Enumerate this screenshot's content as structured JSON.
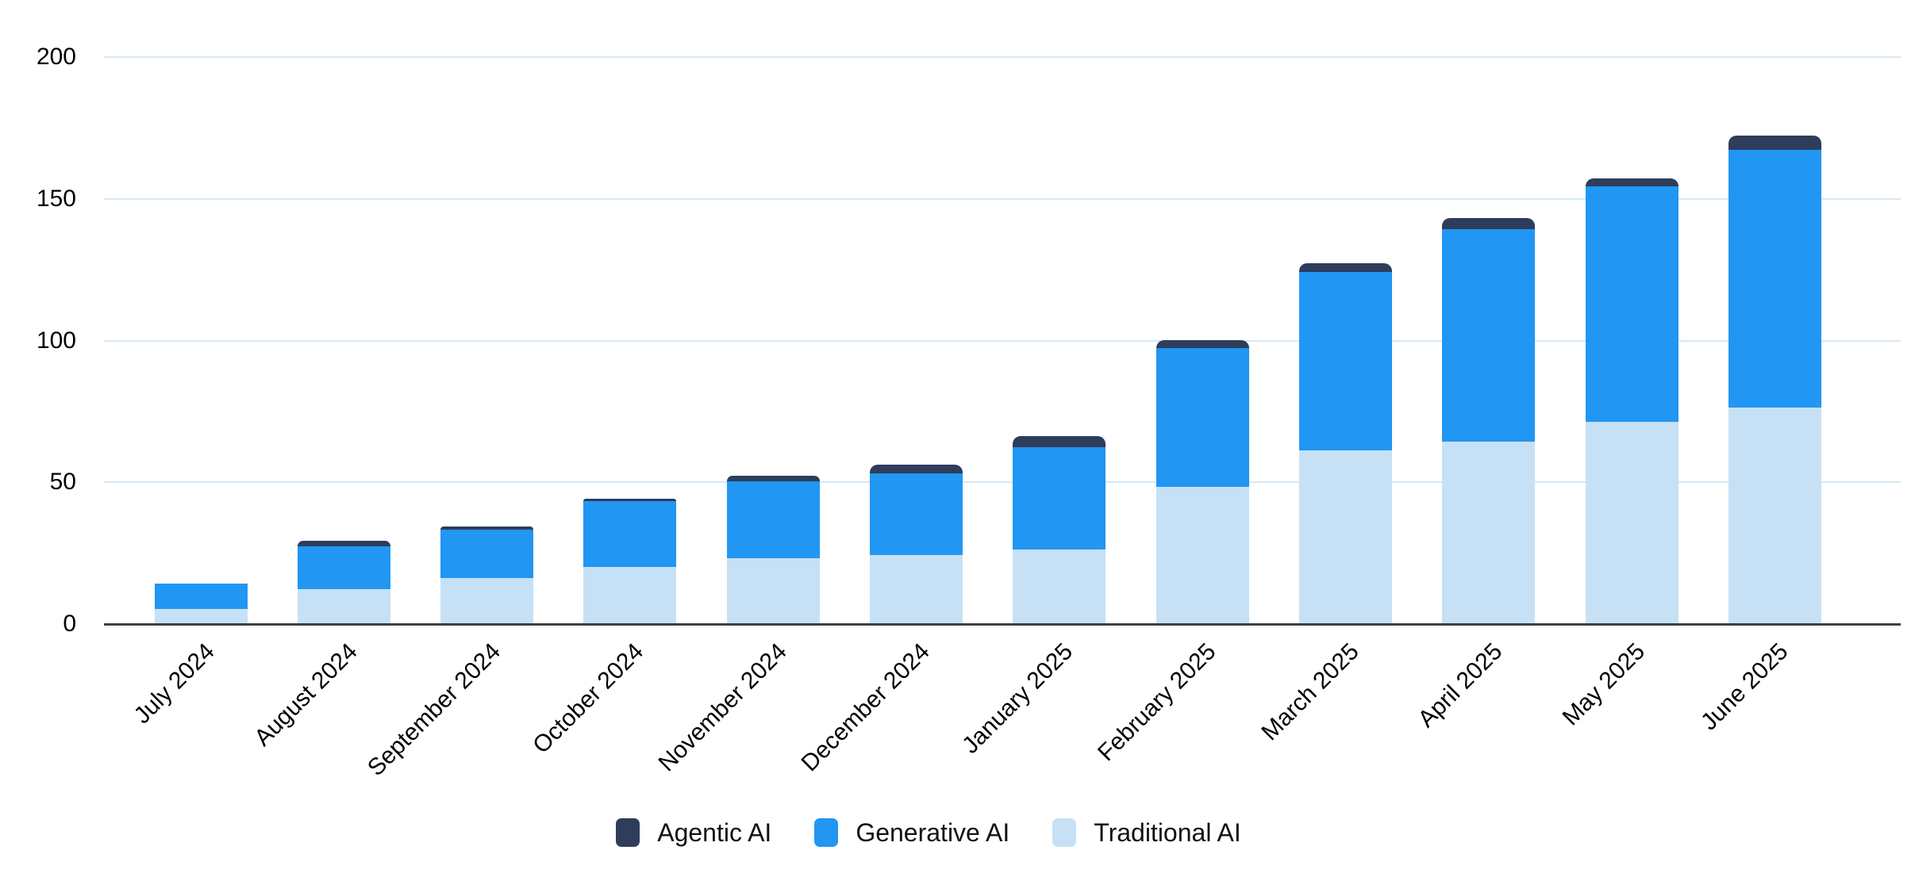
{
  "chart_data": {
    "type": "bar",
    "stacked": true,
    "title": "",
    "xlabel": "",
    "ylabel": "",
    "categories": [
      "July 2024",
      "August 2024",
      "September 2024",
      "October 2024",
      "November 2024",
      "December 2024",
      "January 2025",
      "February 2025",
      "March 2025",
      "April 2025",
      "May 2025",
      "June 2025"
    ],
    "series": [
      {
        "name": "Traditional AI",
        "color": "#C6E1F6",
        "values": [
          5,
          12,
          16,
          20,
          23,
          24,
          26,
          48,
          61,
          64,
          71,
          76
        ]
      },
      {
        "name": "Generative AI",
        "color": "#2196F3",
        "values": [
          9,
          15,
          17,
          23,
          27,
          29,
          36,
          49,
          63,
          75,
          83,
          91
        ]
      },
      {
        "name": "Agentic AI",
        "color": "#2E3D5B",
        "values": [
          0,
          2,
          1,
          1,
          2,
          3,
          4,
          3,
          3,
          4,
          3,
          5
        ]
      }
    ],
    "totals": [
      14,
      29,
      34,
      44,
      52,
      56,
      66,
      100,
      127,
      143,
      157,
      172
    ],
    "legend_order": [
      "Agentic AI",
      "Generative AI",
      "Traditional AI"
    ],
    "legend_position": "bottom",
    "ylim": [
      0,
      200
    ],
    "yticks": [
      0,
      50,
      100,
      150,
      200
    ],
    "grid": "horizontal"
  },
  "colors": {
    "background": "#FFFFFF",
    "gridline": "#D7E8F6",
    "axis_line": "#3F3F3F",
    "tick_text": "#000000"
  }
}
